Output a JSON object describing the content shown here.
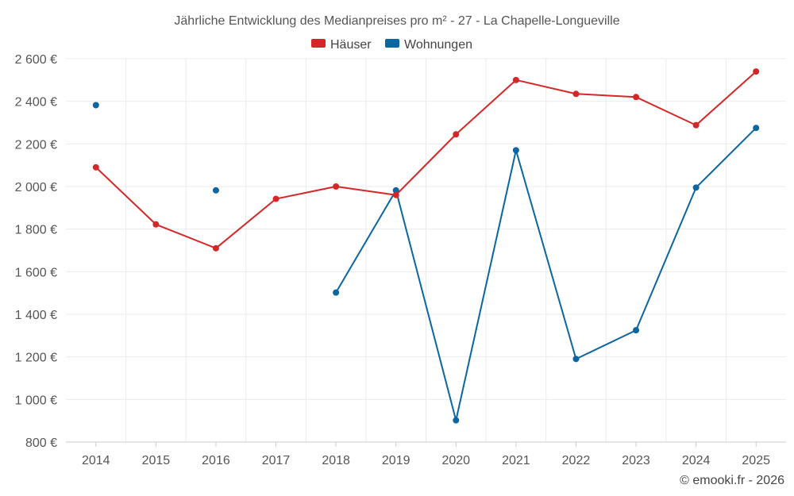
{
  "chart_data": {
    "type": "line",
    "title": "Jährliche Entwicklung des Medianpreises pro m² - 27 - La Chapelle-Longueville",
    "xlabel": "",
    "ylabel": "",
    "categories": [
      "2014",
      "2015",
      "2016",
      "2017",
      "2018",
      "2019",
      "2020",
      "2021",
      "2022",
      "2023",
      "2024",
      "2025"
    ],
    "ylim": [
      800,
      2600
    ],
    "yticks": [
      800,
      1000,
      1200,
      1400,
      1600,
      1800,
      2000,
      2200,
      2400,
      2600
    ],
    "ytick_labels": [
      "800 €",
      "1 000 €",
      "1 200 €",
      "1 400 €",
      "1 600 €",
      "1 800 €",
      "2 000 €",
      "2 200 €",
      "2 400 €",
      "2 600 €"
    ],
    "grid": true,
    "legend_position": "top-center",
    "series": [
      {
        "name": "Häuser",
        "color": "#d62728",
        "values": [
          2090,
          1822,
          1710,
          1942,
          2000,
          1960,
          2245,
          2500,
          2435,
          2420,
          2288,
          2540
        ]
      },
      {
        "name": "Wohnungen",
        "color": "#0a66a0",
        "values": [
          2382,
          null,
          1982,
          null,
          1502,
          1982,
          902,
          2170,
          1190,
          1325,
          1995,
          2275
        ]
      }
    ],
    "credit": "© emooki.fr - 2026"
  }
}
